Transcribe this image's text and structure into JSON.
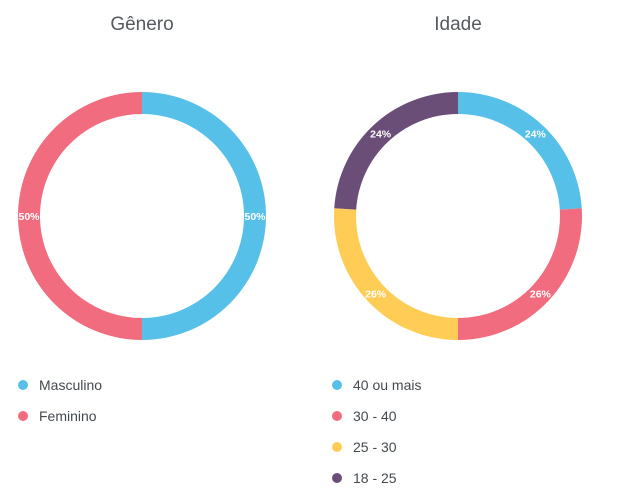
{
  "chart_data": [
    {
      "type": "pie",
      "title": "Gênero",
      "categories": [
        "Masculino",
        "Feminino"
      ],
      "values": [
        50,
        50
      ],
      "labels": [
        "50%",
        "50%"
      ],
      "colors": [
        "#57C0E8",
        "#F06C7E"
      ],
      "legend": "bottom-left"
    },
    {
      "type": "pie",
      "title": "Idade",
      "categories": [
        "40 ou mais",
        "30 - 40",
        "25 - 30",
        "18 - 25"
      ],
      "values": [
        24,
        26,
        26,
        24
      ],
      "labels": [
        "24%",
        "26%",
        "26%",
        "24%"
      ],
      "colors": [
        "#57C0E8",
        "#F06C7E",
        "#FFCD55",
        "#6A4E78"
      ],
      "legend": "bottom-left"
    }
  ]
}
